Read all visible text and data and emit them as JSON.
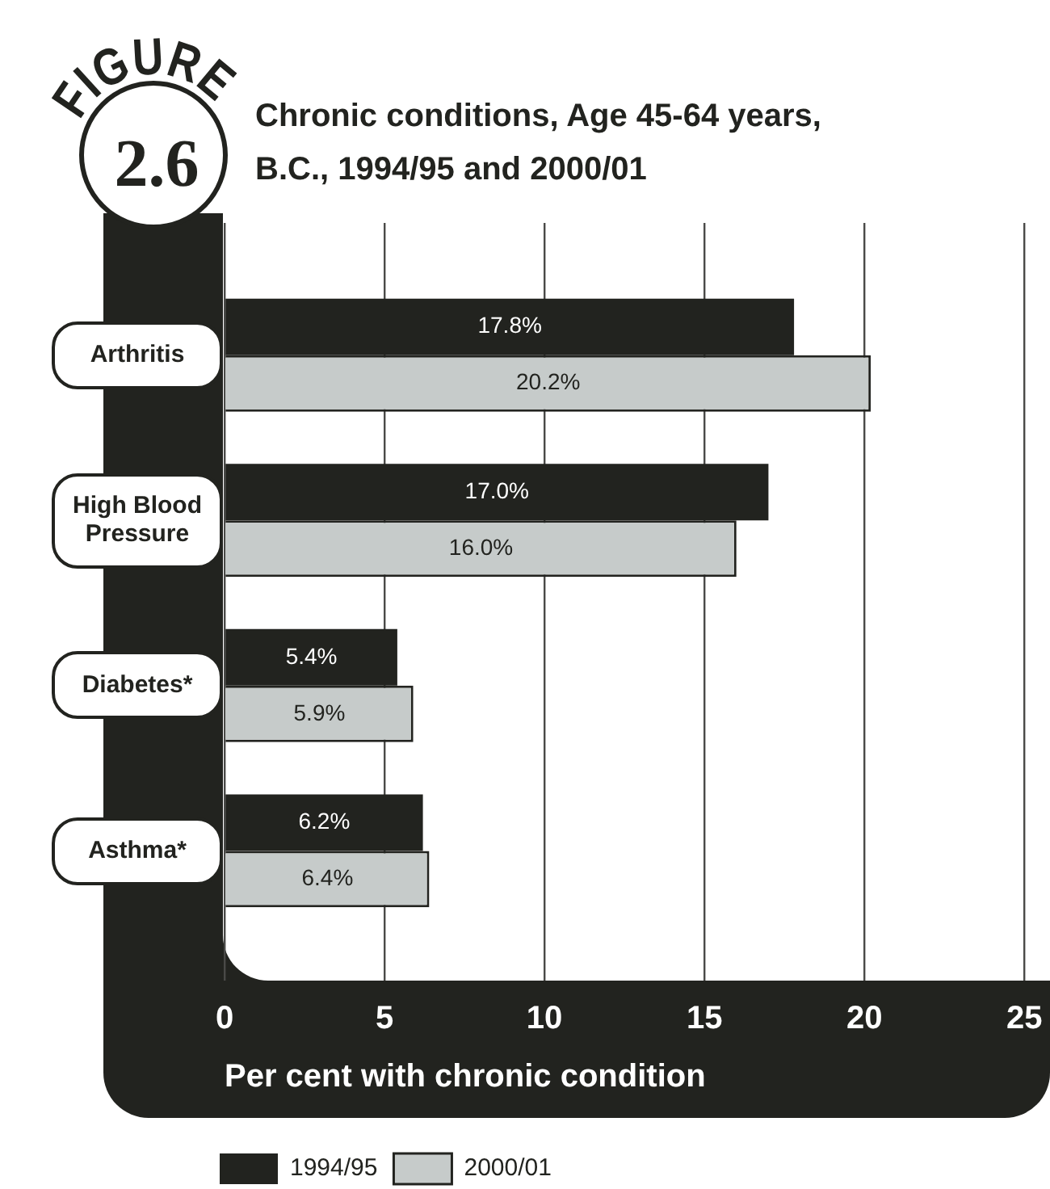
{
  "chart_data": {
    "type": "bar",
    "orientation": "horizontal",
    "title": "Chronic conditions, Age 45-64 years, B.C., 1994/95 and 2000/01",
    "xlabel": "Per cent with chronic condition",
    "categories": [
      "Arthritis",
      "High Blood Pressure",
      "Diabetes*",
      "Asthma*"
    ],
    "series": [
      {
        "name": "1994/95",
        "color": "#22231f",
        "values": [
          17.8,
          17.0,
          5.4,
          6.2
        ],
        "value_labels": [
          "17.8%",
          "17.0%",
          "5.4%",
          "6.2%"
        ]
      },
      {
        "name": "2000/01",
        "color": "#c6cbca",
        "values": [
          20.2,
          16.0,
          5.9,
          6.4
        ],
        "value_labels": [
          "20.2%",
          "16.0%",
          "5.9%",
          "6.4%"
        ]
      }
    ],
    "xlim": [
      0,
      25.8
    ],
    "xticks": [
      0,
      5,
      10,
      15,
      20,
      25
    ],
    "grid": "x",
    "legend": "bottom",
    "annotations": [
      "FIGURE",
      "2.6"
    ]
  }
}
